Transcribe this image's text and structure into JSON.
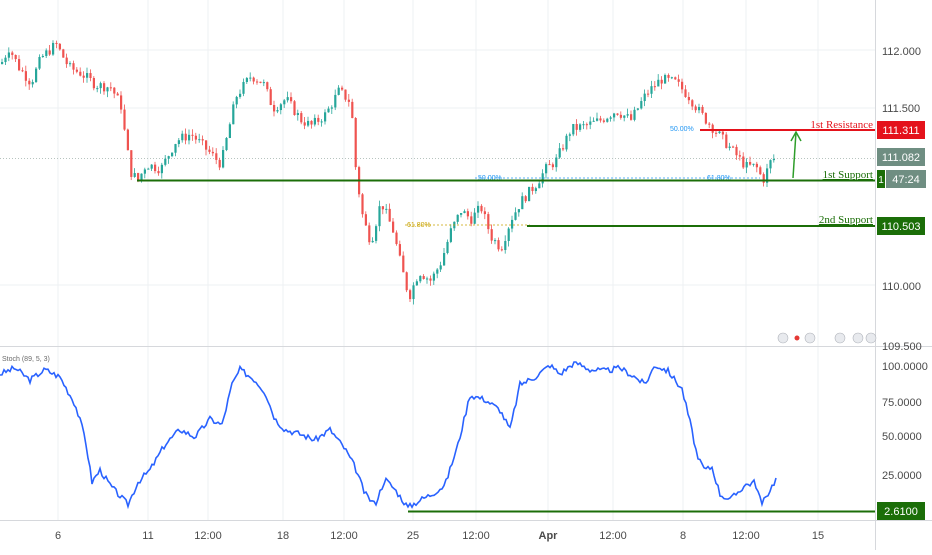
{
  "colors": {
    "up": "#26a69a",
    "down": "#ef5350",
    "support": "#1b6e08",
    "resistance": "#e4121b",
    "stoch": "#2962ff",
    "fib": "#2196f3",
    "fib_gold": "#c8a200",
    "arrow": "#2e9d2a",
    "price_label": "#6f8e82",
    "grid": "#eef0f3",
    "axis_text": "#4a4a4a"
  },
  "price_axis": {
    "ticks": [
      "112.000",
      "111.500",
      "110.000",
      "109.500"
    ],
    "current_price": "111.082",
    "countdown": "47:24",
    "current_prefix": "1"
  },
  "stoch_axis": {
    "ticks": [
      "100.0000",
      "75.0000",
      "50.0000",
      "25.0000"
    ],
    "support_value": "2.6100",
    "indicator_label": "Stoch (89, 5, 3)"
  },
  "time_axis": {
    "ticks": [
      "6",
      "11",
      "12:00",
      "18",
      "12:00",
      "25",
      "12:00",
      "Apr",
      "12:00",
      "8",
      "12:00",
      "15"
    ]
  },
  "levels": [
    {
      "name": "1st Resistance",
      "value": "111.311"
    },
    {
      "name": "1st Support",
      "value": "110.88"
    },
    {
      "name": "2nd Support",
      "value": "110.503"
    }
  ],
  "fib_labels": [
    {
      "text": "50.00%"
    },
    {
      "text": "61.80%"
    },
    {
      "text": "50.00%"
    },
    {
      "text": "61.80%"
    }
  ],
  "chart_data": {
    "type": "candlestick",
    "price_ylim": [
      109.5,
      112.3
    ],
    "stoch_ylim": [
      0,
      100
    ],
    "price_path": [
      [
        0,
        111.88
      ],
      [
        8,
        112.02
      ],
      [
        18,
        111.85
      ],
      [
        30,
        111.72
      ],
      [
        40,
        111.93
      ],
      [
        55,
        112.05
      ],
      [
        68,
        111.85
      ],
      [
        80,
        111.8
      ],
      [
        95,
        111.7
      ],
      [
        110,
        111.68
      ],
      [
        120,
        111.52
      ],
      [
        125,
        111.2
      ],
      [
        130,
        110.95
      ],
      [
        137,
        110.88
      ],
      [
        145,
        111.02
      ],
      [
        160,
        110.98
      ],
      [
        175,
        111.22
      ],
      [
        190,
        111.28
      ],
      [
        205,
        111.15
      ],
      [
        220,
        111.02
      ],
      [
        235,
        111.6
      ],
      [
        250,
        111.78
      ],
      [
        262,
        111.72
      ],
      [
        272,
        111.5
      ],
      [
        285,
        111.58
      ],
      [
        300,
        111.4
      ],
      [
        310,
        111.35
      ],
      [
        325,
        111.45
      ],
      [
        338,
        111.65
      ],
      [
        350,
        111.55
      ],
      [
        355,
        110.95
      ],
      [
        362,
        110.55
      ],
      [
        370,
        110.35
      ],
      [
        380,
        110.7
      ],
      [
        392,
        110.45
      ],
      [
        400,
        110.15
      ],
      [
        408,
        109.88
      ],
      [
        418,
        110.1
      ],
      [
        430,
        110.02
      ],
      [
        440,
        110.18
      ],
      [
        450,
        110.45
      ],
      [
        460,
        110.62
      ],
      [
        470,
        110.55
      ],
      [
        480,
        110.65
      ],
      [
        490,
        110.4
      ],
      [
        500,
        110.3
      ],
      [
        510,
        110.55
      ],
      [
        520,
        110.7
      ],
      [
        535,
        110.85
      ],
      [
        545,
        110.98
      ],
      [
        555,
        111.05
      ],
      [
        570,
        111.32
      ],
      [
        585,
        111.35
      ],
      [
        600,
        111.4
      ],
      [
        615,
        111.48
      ],
      [
        630,
        111.4
      ],
      [
        645,
        111.62
      ],
      [
        660,
        111.75
      ],
      [
        675,
        111.72
      ],
      [
        688,
        111.6
      ],
      [
        700,
        111.45
      ],
      [
        715,
        111.3
      ],
      [
        730,
        111.15
      ],
      [
        745,
        111.0
      ],
      [
        755,
        111.0
      ],
      [
        762,
        110.88
      ],
      [
        770,
        111.05
      ],
      [
        776,
        111.08
      ]
    ],
    "stoch_path": [
      [
        0,
        92
      ],
      [
        15,
        96
      ],
      [
        30,
        88
      ],
      [
        45,
        95
      ],
      [
        60,
        90
      ],
      [
        75,
        72
      ],
      [
        85,
        50
      ],
      [
        92,
        20
      ],
      [
        100,
        28
      ],
      [
        110,
        18
      ],
      [
        118,
        12
      ],
      [
        128,
        5
      ],
      [
        138,
        20
      ],
      [
        150,
        28
      ],
      [
        165,
        45
      ],
      [
        180,
        55
      ],
      [
        195,
        50
      ],
      [
        210,
        62
      ],
      [
        222,
        58
      ],
      [
        232,
        85
      ],
      [
        240,
        95
      ],
      [
        255,
        88
      ],
      [
        265,
        80
      ],
      [
        275,
        62
      ],
      [
        285,
        55
      ],
      [
        300,
        52
      ],
      [
        315,
        48
      ],
      [
        330,
        55
      ],
      [
        345,
        42
      ],
      [
        355,
        30
      ],
      [
        365,
        12
      ],
      [
        375,
        5
      ],
      [
        385,
        22
      ],
      [
        395,
        15
      ],
      [
        408,
        3
      ],
      [
        420,
        8
      ],
      [
        432,
        12
      ],
      [
        445,
        18
      ],
      [
        458,
        45
      ],
      [
        470,
        78
      ],
      [
        485,
        75
      ],
      [
        500,
        68
      ],
      [
        510,
        55
      ],
      [
        520,
        85
      ],
      [
        535,
        90
      ],
      [
        550,
        98
      ],
      [
        560,
        92
      ],
      [
        575,
        100
      ],
      [
        590,
        95
      ],
      [
        605,
        94
      ],
      [
        620,
        96
      ],
      [
        635,
        90
      ],
      [
        645,
        85
      ],
      [
        655,
        98
      ],
      [
        668,
        94
      ],
      [
        682,
        82
      ],
      [
        690,
        60
      ],
      [
        698,
        35
      ],
      [
        705,
        28
      ],
      [
        712,
        30
      ],
      [
        720,
        12
      ],
      [
        730,
        8
      ],
      [
        745,
        18
      ],
      [
        755,
        20
      ],
      [
        762,
        5
      ],
      [
        770,
        15
      ],
      [
        776,
        22
      ]
    ]
  }
}
